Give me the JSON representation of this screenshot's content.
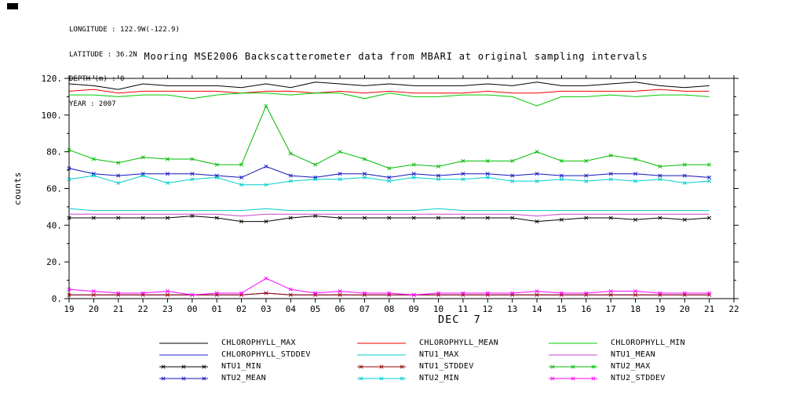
{
  "header": {
    "longitude": "LONGITUDE : 122.9W(-122.9)",
    "latitude": "LATITUDE : 36.2N",
    "depth": "DEPTH (m) : 0",
    "year": "YEAR : 2007"
  },
  "chart_data": {
    "type": "line",
    "title": "Mooring MSE2006 Backscatterometer data from MBARI at original sampling intervals",
    "ylabel": "counts",
    "xlabel": "DEC  7",
    "ylim": [
      0,
      120
    ],
    "grid": false,
    "legend_position": "bottom",
    "y_ticks": [
      "0.",
      "20.",
      "40.",
      "60.",
      "80.",
      "100.",
      "120."
    ],
    "x_tick_labels": [
      "19",
      "20",
      "21",
      "22",
      "23",
      "00",
      "01",
      "02",
      "03",
      "04",
      "05",
      "06",
      "07",
      "08",
      "09",
      "10",
      "11",
      "12",
      "13",
      "14",
      "15",
      "16",
      "17",
      "18",
      "19",
      "20",
      "21",
      "22"
    ],
    "series": [
      {
        "name": "CHLOROPHYLL_MAX",
        "color": "#000000",
        "marker": false,
        "values": [
          117,
          116,
          114,
          117,
          116,
          116,
          116,
          115,
          117,
          115,
          118,
          117,
          116,
          117,
          116,
          116,
          116,
          117,
          116,
          118,
          116,
          116,
          117,
          118,
          116,
          115,
          116
        ]
      },
      {
        "name": "CHLOROPHYLL_MEAN",
        "color": "#ee0000",
        "marker": false,
        "values": [
          113,
          114,
          112,
          113,
          113,
          113,
          113,
          112,
          113,
          113,
          112,
          113,
          112,
          113,
          112,
          112,
          112,
          113,
          112,
          112,
          113,
          113,
          113,
          113,
          114,
          113,
          113
        ]
      },
      {
        "name": "CHLOROPHYLL_MIN",
        "color": "#00cc00",
        "marker": false,
        "values": [
          111,
          111,
          110,
          111,
          111,
          109,
          111,
          112,
          112,
          111,
          112,
          112,
          109,
          112,
          110,
          110,
          111,
          111,
          110,
          105,
          110,
          110,
          111,
          110,
          111,
          111,
          110
        ]
      },
      {
        "name": "CHLOROPHYLL_STDDEV",
        "color": "#2222cc",
        "marker": false,
        "values": [
          2,
          2,
          2,
          2,
          2,
          2,
          2,
          2,
          3,
          2,
          2,
          2,
          2,
          2,
          2,
          2,
          2,
          2,
          2,
          2,
          2,
          2,
          2,
          2,
          2,
          2,
          2
        ]
      },
      {
        "name": "NTU1_MAX",
        "color": "#00cccc",
        "marker": false,
        "values": [
          49,
          48,
          48,
          48,
          48,
          48,
          48,
          48,
          49,
          48,
          48,
          48,
          48,
          48,
          48,
          49,
          48,
          48,
          48,
          48,
          48,
          48,
          48,
          48,
          48,
          48,
          48
        ]
      },
      {
        "name": "NTU1_MEAN",
        "color": "#cc44cc",
        "marker": false,
        "values": [
          46,
          46,
          46,
          46,
          46,
          46,
          46,
          45,
          46,
          46,
          46,
          46,
          46,
          46,
          46,
          46,
          46,
          46,
          46,
          45,
          46,
          46,
          46,
          46,
          46,
          46,
          46
        ]
      },
      {
        "name": "NTU1_MIN",
        "color": "#000000",
        "marker": true,
        "values": [
          44,
          44,
          44,
          44,
          44,
          45,
          44,
          42,
          42,
          44,
          45,
          44,
          44,
          44,
          44,
          44,
          44,
          44,
          44,
          42,
          43,
          44,
          44,
          43,
          44,
          43,
          44
        ]
      },
      {
        "name": "NTU1_STDDEV",
        "color": "#990000",
        "marker": true,
        "values": [
          2,
          2,
          2,
          2,
          2,
          2,
          2,
          2,
          3,
          2,
          2,
          2,
          2,
          2,
          2,
          2,
          2,
          2,
          2,
          2,
          2,
          2,
          2,
          2,
          2,
          2,
          2
        ]
      },
      {
        "name": "NTU2_MAX",
        "color": "#00bb00",
        "marker": true,
        "values": [
          81,
          76,
          74,
          77,
          76,
          76,
          73,
          73,
          105,
          79,
          73,
          80,
          76,
          71,
          73,
          72,
          75,
          75,
          75,
          80,
          75,
          75,
          78,
          76,
          72,
          73,
          73
        ]
      },
      {
        "name": "NTU2_MEAN",
        "color": "#1111bb",
        "marker": true,
        "values": [
          71,
          68,
          67,
          68,
          68,
          68,
          67,
          66,
          72,
          67,
          66,
          68,
          68,
          66,
          68,
          67,
          68,
          68,
          67,
          68,
          67,
          67,
          68,
          68,
          67,
          67,
          66
        ]
      },
      {
        "name": "NTU2_MIN",
        "color": "#00cccc",
        "marker": true,
        "values": [
          65,
          67,
          63,
          67,
          63,
          65,
          66,
          62,
          62,
          64,
          65,
          65,
          66,
          64,
          66,
          65,
          65,
          66,
          64,
          64,
          65,
          64,
          65,
          64,
          65,
          63,
          64
        ]
      },
      {
        "name": "NTU2_STDDEV",
        "color": "#ff00ff",
        "marker": true,
        "values": [
          5,
          4,
          3,
          3,
          4,
          2,
          3,
          3,
          11,
          5,
          3,
          4,
          3,
          3,
          2,
          3,
          3,
          3,
          3,
          4,
          3,
          3,
          4,
          4,
          3,
          3,
          3
        ]
      }
    ]
  }
}
